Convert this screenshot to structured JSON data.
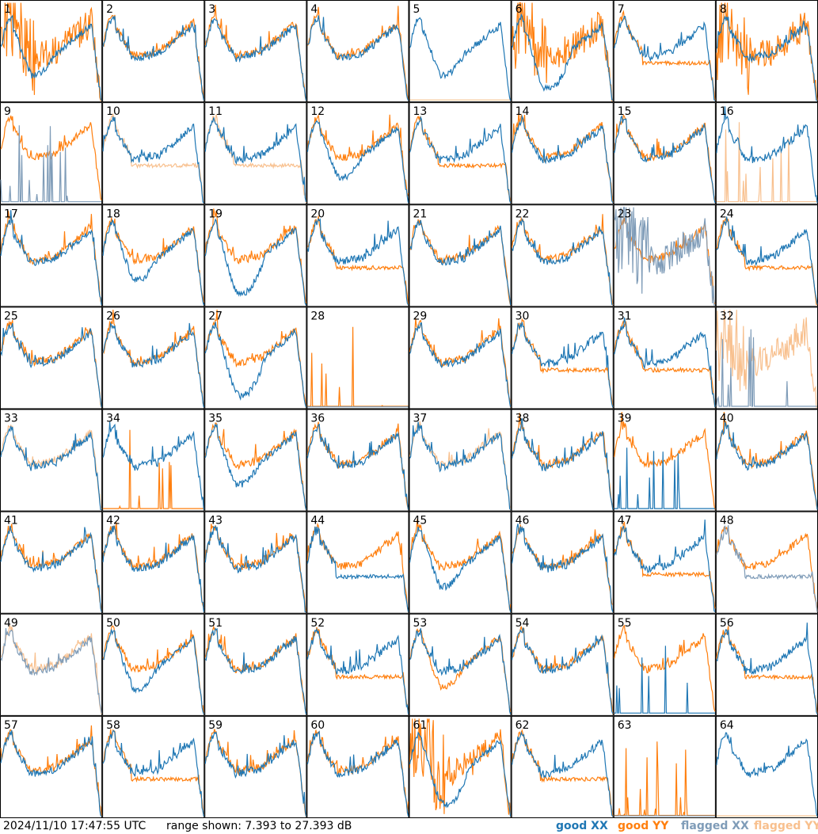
{
  "footer": {
    "timestamp": "2024/11/10 17:47:55 UTC",
    "range": "range shown: 7.393 to 27.393 dB",
    "legend_good_xx": "good XX",
    "legend_good_yy": "good YY",
    "legend_flagged_xx": "flagged XX",
    "legend_flagged_yy": "flagged YY"
  },
  "colors": {
    "good_xx": "#1f77b4",
    "good_yy": "#ff7f0e",
    "flagged_xx": "#7f9cb8",
    "flagged_yy": "#f8c08e"
  },
  "chart_data": {
    "type": "line",
    "grid_rows": 8,
    "grid_cols": 8,
    "ylim": [
      7.393,
      27.393
    ],
    "unit": "dB",
    "panels": [
      {
        "label": "1",
        "xx": {
          "state": "good",
          "shape": "dip"
        },
        "yy": {
          "state": "good",
          "shape": "noisy"
        }
      },
      {
        "label": "2",
        "xx": {
          "state": "good",
          "shape": "normal"
        },
        "yy": {
          "state": "good",
          "shape": "normal"
        }
      },
      {
        "label": "3",
        "xx": {
          "state": "good",
          "shape": "normal"
        },
        "yy": {
          "state": "good",
          "shape": "normal"
        }
      },
      {
        "label": "4",
        "xx": {
          "state": "good",
          "shape": "normal"
        },
        "yy": {
          "state": "good",
          "shape": "normal"
        }
      },
      {
        "label": "5",
        "xx": {
          "state": "good",
          "shape": "dip"
        },
        "yy": {
          "state": "flagged",
          "shape": "dead"
        }
      },
      {
        "label": "6",
        "xx": {
          "state": "good",
          "shape": "deepdip"
        },
        "yy": {
          "state": "good",
          "shape": "noisy"
        }
      },
      {
        "label": "7",
        "xx": {
          "state": "good",
          "shape": "normal"
        },
        "yy": {
          "state": "good",
          "shape": "lowflat"
        }
      },
      {
        "label": "8",
        "xx": {
          "state": "good",
          "shape": "normal"
        },
        "yy": {
          "state": "good",
          "shape": "noisy"
        }
      },
      {
        "label": "9",
        "xx": {
          "state": "flagged",
          "shape": "spikes"
        },
        "yy": {
          "state": "good",
          "shape": "normal"
        }
      },
      {
        "label": "10",
        "xx": {
          "state": "good",
          "shape": "normal"
        },
        "yy": {
          "state": "flagged",
          "shape": "lowflat"
        }
      },
      {
        "label": "11",
        "xx": {
          "state": "good",
          "shape": "normal"
        },
        "yy": {
          "state": "flagged",
          "shape": "lowflat"
        }
      },
      {
        "label": "12",
        "xx": {
          "state": "good",
          "shape": "dip"
        },
        "yy": {
          "state": "good",
          "shape": "normal"
        }
      },
      {
        "label": "13",
        "xx": {
          "state": "good",
          "shape": "normal"
        },
        "yy": {
          "state": "good",
          "shape": "lowflat"
        }
      },
      {
        "label": "14",
        "xx": {
          "state": "good",
          "shape": "normal"
        },
        "yy": {
          "state": "good",
          "shape": "normal"
        }
      },
      {
        "label": "15",
        "xx": {
          "state": "good",
          "shape": "normal"
        },
        "yy": {
          "state": "good",
          "shape": "normal"
        }
      },
      {
        "label": "16",
        "xx": {
          "state": "good",
          "shape": "normal"
        },
        "yy": {
          "state": "flagged",
          "shape": "spikes"
        }
      },
      {
        "label": "17",
        "xx": {
          "state": "good",
          "shape": "normal"
        },
        "yy": {
          "state": "good",
          "shape": "normal"
        }
      },
      {
        "label": "18",
        "xx": {
          "state": "good",
          "shape": "dip"
        },
        "yy": {
          "state": "good",
          "shape": "normal"
        }
      },
      {
        "label": "19",
        "xx": {
          "state": "good",
          "shape": "deepdip"
        },
        "yy": {
          "state": "good",
          "shape": "normal"
        }
      },
      {
        "label": "20",
        "xx": {
          "state": "good",
          "shape": "normal"
        },
        "yy": {
          "state": "good",
          "shape": "lowflat"
        }
      },
      {
        "label": "21",
        "xx": {
          "state": "good",
          "shape": "normal"
        },
        "yy": {
          "state": "good",
          "shape": "normal"
        }
      },
      {
        "label": "22",
        "xx": {
          "state": "good",
          "shape": "normal"
        },
        "yy": {
          "state": "good",
          "shape": "normal"
        }
      },
      {
        "label": "23",
        "xx": {
          "state": "flagged",
          "shape": "noisy"
        },
        "yy": {
          "state": "good",
          "shape": "normal"
        }
      },
      {
        "label": "24",
        "xx": {
          "state": "good",
          "shape": "normal"
        },
        "yy": {
          "state": "good",
          "shape": "lowflat"
        }
      },
      {
        "label": "25",
        "xx": {
          "state": "good",
          "shape": "normal"
        },
        "yy": {
          "state": "good",
          "shape": "normal"
        }
      },
      {
        "label": "26",
        "xx": {
          "state": "good",
          "shape": "normal"
        },
        "yy": {
          "state": "good",
          "shape": "normal"
        }
      },
      {
        "label": "27",
        "xx": {
          "state": "good",
          "shape": "deepdip"
        },
        "yy": {
          "state": "good",
          "shape": "normal"
        }
      },
      {
        "label": "28",
        "xx": {
          "state": "flagged",
          "shape": "dead"
        },
        "yy": {
          "state": "good",
          "shape": "spikes"
        }
      },
      {
        "label": "29",
        "xx": {
          "state": "good",
          "shape": "normal"
        },
        "yy": {
          "state": "good",
          "shape": "normal"
        }
      },
      {
        "label": "30",
        "xx": {
          "state": "good",
          "shape": "normal"
        },
        "yy": {
          "state": "good",
          "shape": "lowflat"
        }
      },
      {
        "label": "31",
        "xx": {
          "state": "good",
          "shape": "normal"
        },
        "yy": {
          "state": "good",
          "shape": "lowflat"
        }
      },
      {
        "label": "32",
        "xx": {
          "state": "flagged",
          "shape": "spikes"
        },
        "yy": {
          "state": "flagged",
          "shape": "noisy"
        }
      },
      {
        "label": "33",
        "xx": {
          "state": "good",
          "shape": "normal"
        },
        "yy": {
          "state": "flagged",
          "shape": "normal"
        }
      },
      {
        "label": "34",
        "xx": {
          "state": "good",
          "shape": "normal"
        },
        "yy": {
          "state": "good",
          "shape": "spikes"
        }
      },
      {
        "label": "35",
        "xx": {
          "state": "good",
          "shape": "dip"
        },
        "yy": {
          "state": "good",
          "shape": "normal"
        }
      },
      {
        "label": "36",
        "xx": {
          "state": "good",
          "shape": "normal"
        },
        "yy": {
          "state": "good",
          "shape": "normal"
        }
      },
      {
        "label": "37",
        "xx": {
          "state": "good",
          "shape": "normal"
        },
        "yy": {
          "state": "flagged",
          "shape": "normal"
        }
      },
      {
        "label": "38",
        "xx": {
          "state": "good",
          "shape": "normal"
        },
        "yy": {
          "state": "good",
          "shape": "normal"
        }
      },
      {
        "label": "39",
        "xx": {
          "state": "good",
          "shape": "spikes"
        },
        "yy": {
          "state": "good",
          "shape": "normal"
        }
      },
      {
        "label": "40",
        "xx": {
          "state": "good",
          "shape": "normal"
        },
        "yy": {
          "state": "good",
          "shape": "normal"
        }
      },
      {
        "label": "41",
        "xx": {
          "state": "good",
          "shape": "normal"
        },
        "yy": {
          "state": "good",
          "shape": "normal"
        }
      },
      {
        "label": "42",
        "xx": {
          "state": "good",
          "shape": "normal"
        },
        "yy": {
          "state": "good",
          "shape": "normal"
        }
      },
      {
        "label": "43",
        "xx": {
          "state": "good",
          "shape": "normal"
        },
        "yy": {
          "state": "good",
          "shape": "normal"
        }
      },
      {
        "label": "44",
        "xx": {
          "state": "good",
          "shape": "lowflat"
        },
        "yy": {
          "state": "good",
          "shape": "normal"
        }
      },
      {
        "label": "45",
        "xx": {
          "state": "good",
          "shape": "dip"
        },
        "yy": {
          "state": "good",
          "shape": "normal"
        }
      },
      {
        "label": "46",
        "xx": {
          "state": "good",
          "shape": "normal"
        },
        "yy": {
          "state": "good",
          "shape": "normal"
        }
      },
      {
        "label": "47",
        "xx": {
          "state": "good",
          "shape": "normal"
        },
        "yy": {
          "state": "good",
          "shape": "lowflat"
        }
      },
      {
        "label": "48",
        "xx": {
          "state": "flagged",
          "shape": "lowflat"
        },
        "yy": {
          "state": "good",
          "shape": "normal"
        }
      },
      {
        "label": "49",
        "xx": {
          "state": "flagged",
          "shape": "normal"
        },
        "yy": {
          "state": "flagged",
          "shape": "normal"
        }
      },
      {
        "label": "50",
        "xx": {
          "state": "good",
          "shape": "dip"
        },
        "yy": {
          "state": "good",
          "shape": "normal"
        }
      },
      {
        "label": "51",
        "xx": {
          "state": "good",
          "shape": "normal"
        },
        "yy": {
          "state": "good",
          "shape": "normal"
        }
      },
      {
        "label": "52",
        "xx": {
          "state": "good",
          "shape": "normal"
        },
        "yy": {
          "state": "good",
          "shape": "lowflat"
        }
      },
      {
        "label": "53",
        "xx": {
          "state": "good",
          "shape": "normal"
        },
        "yy": {
          "state": "good",
          "shape": "dip"
        }
      },
      {
        "label": "54",
        "xx": {
          "state": "good",
          "shape": "normal"
        },
        "yy": {
          "state": "good",
          "shape": "normal"
        }
      },
      {
        "label": "55",
        "xx": {
          "state": "good",
          "shape": "spikes"
        },
        "yy": {
          "state": "good",
          "shape": "normal"
        }
      },
      {
        "label": "56",
        "xx": {
          "state": "good",
          "shape": "normal"
        },
        "yy": {
          "state": "good",
          "shape": "lowflat"
        }
      },
      {
        "label": "57",
        "xx": {
          "state": "good",
          "shape": "normal"
        },
        "yy": {
          "state": "good",
          "shape": "normal"
        }
      },
      {
        "label": "58",
        "xx": {
          "state": "good",
          "shape": "normal"
        },
        "yy": {
          "state": "good",
          "shape": "lowflat"
        }
      },
      {
        "label": "59",
        "xx": {
          "state": "good",
          "shape": "normal"
        },
        "yy": {
          "state": "good",
          "shape": "normal"
        }
      },
      {
        "label": "60",
        "xx": {
          "state": "good",
          "shape": "normal"
        },
        "yy": {
          "state": "good",
          "shape": "normal"
        }
      },
      {
        "label": "61",
        "xx": {
          "state": "good",
          "shape": "deepdip"
        },
        "yy": {
          "state": "good",
          "shape": "noisy"
        }
      },
      {
        "label": "62",
        "xx": {
          "state": "good",
          "shape": "normal"
        },
        "yy": {
          "state": "good",
          "shape": "lowflat"
        }
      },
      {
        "label": "63",
        "xx": {
          "state": "flagged",
          "shape": "dead"
        },
        "yy": {
          "state": "good",
          "shape": "spikes"
        }
      },
      {
        "label": "64",
        "xx": {
          "state": "good",
          "shape": "normal"
        },
        "yy": {
          "state": "flagged",
          "shape": "dead"
        }
      }
    ]
  }
}
